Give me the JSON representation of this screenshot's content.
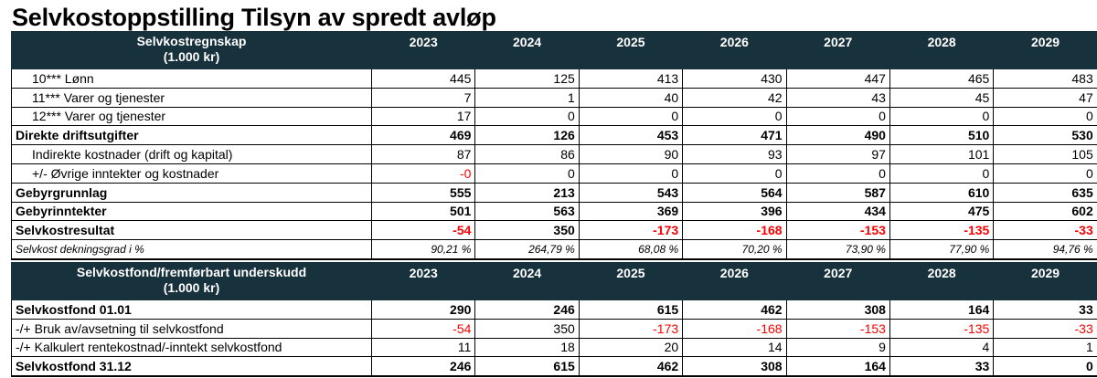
{
  "title": "Selvkostoppstilling Tilsyn av spredt avløp",
  "section1": {
    "header_line1": "Selvkostregnskap",
    "header_line2": "(1.000 kr)",
    "years": [
      "2023",
      "2024",
      "2025",
      "2026",
      "2027",
      "2028",
      "2029"
    ],
    "rows": [
      {
        "label": "10*** Lønn",
        "values": [
          "445",
          "125",
          "413",
          "430",
          "447",
          "465",
          "483"
        ]
      },
      {
        "label": "11*** Varer og tjenester",
        "values": [
          "7",
          "1",
          "40",
          "42",
          "43",
          "45",
          "47"
        ]
      },
      {
        "label": "12*** Varer og tjenester",
        "values": [
          "17",
          "0",
          "0",
          "0",
          "0",
          "0",
          "0"
        ]
      },
      {
        "label": "Direkte driftsutgifter",
        "values": [
          "469",
          "126",
          "453",
          "471",
          "490",
          "510",
          "530"
        ]
      },
      {
        "label": "Indirekte kostnader (drift og kapital)",
        "values": [
          "87",
          "86",
          "90",
          "93",
          "97",
          "101",
          "105"
        ]
      },
      {
        "label": "+/- Øvrige inntekter og kostnader",
        "values": [
          "-0",
          "0",
          "0",
          "0",
          "0",
          "0",
          "0"
        ]
      },
      {
        "label": "Gebyrgrunnlag",
        "values": [
          "555",
          "213",
          "543",
          "564",
          "587",
          "610",
          "635"
        ]
      },
      {
        "label": "Gebyrinntekter",
        "values": [
          "501",
          "563",
          "369",
          "396",
          "434",
          "475",
          "602"
        ]
      },
      {
        "label": "Selvkostresultat",
        "values": [
          "-54",
          "350",
          "-173",
          "-168",
          "-153",
          "-135",
          "-33"
        ]
      },
      {
        "label": "Selvkost dekningsgrad i %",
        "values": [
          "90,21 %",
          "264,79 %",
          "68,08 %",
          "70,20 %",
          "73,90 %",
          "77,90 %",
          "94,76 %"
        ]
      }
    ]
  },
  "section2": {
    "header_line1": "Selvkostfond/fremførbart underskudd",
    "header_line2": "(1.000 kr)",
    "years": [
      "2023",
      "2024",
      "2025",
      "2026",
      "2027",
      "2028",
      "2029"
    ],
    "rows": [
      {
        "label": "Selvkostfond 01.01",
        "values": [
          "290",
          "246",
          "615",
          "462",
          "308",
          "164",
          "33"
        ]
      },
      {
        "label": "-/+ Bruk av/avsetning til selvkostfond",
        "values": [
          "-54",
          "350",
          "-173",
          "-168",
          "-153",
          "-135",
          "-33"
        ]
      },
      {
        "label": "-/+ Kalkulert rentekostnad/-inntekt selvkostfond",
        "values": [
          "11",
          "18",
          "20",
          "14",
          "9",
          "4",
          "1"
        ]
      },
      {
        "label": "Selvkostfond 31.12",
        "values": [
          "246",
          "615",
          "462",
          "308",
          "164",
          "33",
          "0"
        ]
      }
    ]
  },
  "colors": {
    "header_bg": "#17313d",
    "negative": "#ff0000"
  }
}
